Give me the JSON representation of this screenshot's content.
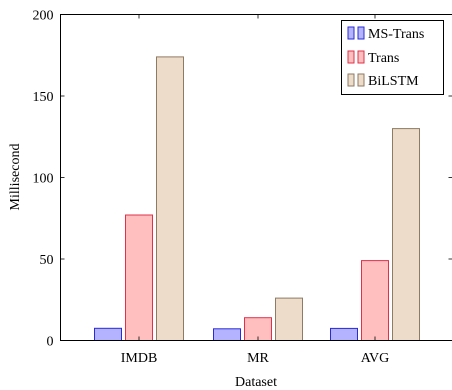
{
  "chart_data": {
    "type": "bar",
    "title": "",
    "xlabel": "Dataset",
    "ylabel": "Millisecond",
    "categories": [
      "IMDB",
      "MR",
      "AVG"
    ],
    "ylim": [
      0,
      200
    ],
    "yticks": [
      0,
      50,
      100,
      150,
      200
    ],
    "grid": false,
    "legend_position": "top-right",
    "series": [
      {
        "name": "MS-Trans",
        "values": [
          7.5,
          7.2,
          7.4
        ],
        "fill": "#b3b3ff",
        "stroke": "#2b2bd6"
      },
      {
        "name": "Trans",
        "values": [
          77,
          14,
          49
        ],
        "fill": "#ffbfbf",
        "stroke": "#e0304a"
      },
      {
        "name": "BiLSTM",
        "values": [
          174,
          26,
          130
        ],
        "fill": "#eddcca",
        "stroke": "#8f7a63"
      }
    ]
  }
}
